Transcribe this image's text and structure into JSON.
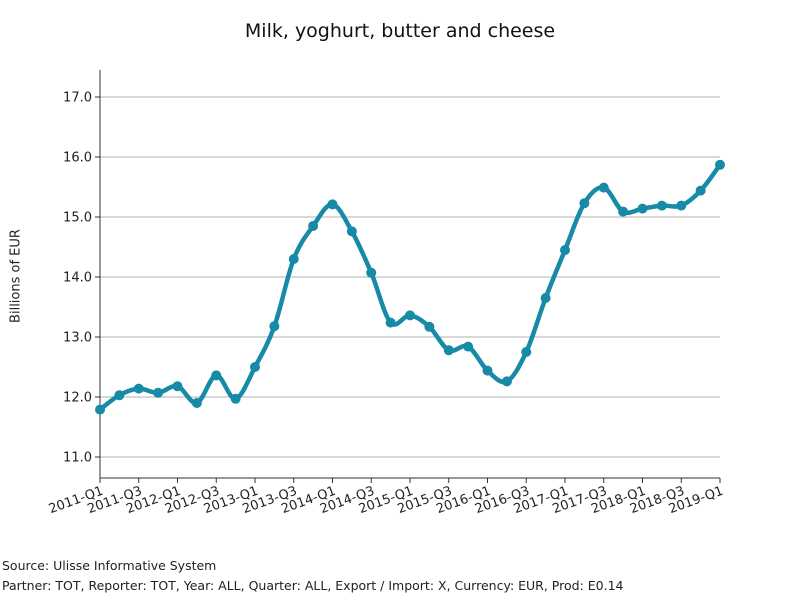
{
  "chart_data": {
    "type": "line",
    "title": "Milk, yoghurt, butter and cheese",
    "ylabel": "Billions of EUR",
    "xlabel": "",
    "ylim": [
      10.65,
      17.45
    ],
    "yticks": [
      11.0,
      12.0,
      13.0,
      14.0,
      15.0,
      16.0,
      17.0
    ],
    "xtick_labels": [
      "2011-Q1",
      "2011-Q3",
      "2012-Q1",
      "2012-Q3",
      "2013-Q1",
      "2013-Q3",
      "2014-Q1",
      "2014-Q3",
      "2015-Q1",
      "2015-Q3",
      "2016-Q1",
      "2016-Q3",
      "2017-Q1",
      "2017-Q3",
      "2018-Q1",
      "2018-Q3",
      "2019-Q1"
    ],
    "grid": "horizontal",
    "series_color": "#168aa6",
    "x": [
      "2011-Q1",
      "2011-Q2",
      "2011-Q3",
      "2011-Q4",
      "2012-Q1",
      "2012-Q2",
      "2012-Q3",
      "2012-Q4",
      "2013-Q1",
      "2013-Q2",
      "2013-Q3",
      "2013-Q4",
      "2014-Q1",
      "2014-Q2",
      "2014-Q3",
      "2014-Q4",
      "2015-Q1",
      "2015-Q2",
      "2015-Q3",
      "2015-Q4",
      "2016-Q1",
      "2016-Q2",
      "2016-Q3",
      "2016-Q4",
      "2017-Q1",
      "2017-Q2",
      "2017-Q3",
      "2017-Q4",
      "2018-Q1",
      "2018-Q2",
      "2018-Q3",
      "2018-Q4",
      "2019-Q1"
    ],
    "series": [
      {
        "values": [
          11.79,
          12.03,
          12.14,
          12.07,
          12.18,
          11.9,
          12.36,
          11.97,
          12.5,
          13.18,
          14.3,
          14.85,
          15.21,
          14.76,
          14.07,
          13.24,
          13.36,
          13.17,
          12.78,
          12.84,
          12.44,
          12.26,
          12.75,
          13.65,
          14.45,
          15.23,
          15.49,
          15.09,
          15.14,
          15.19,
          15.19,
          15.44,
          15.87
        ]
      }
    ]
  },
  "footer": {
    "source": "Source: Ulisse Informative System",
    "info": "Partner: TOT, Reporter: TOT, Year: ALL, Quarter: ALL, Export / Import: X, Currency: EUR, Prod: E0.14"
  }
}
